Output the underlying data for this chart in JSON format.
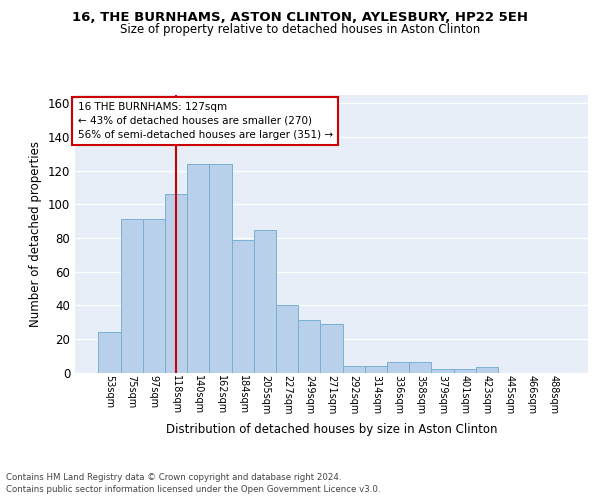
{
  "title1": "16, THE BURNHAMS, ASTON CLINTON, AYLESBURY, HP22 5EH",
  "title2": "Size of property relative to detached houses in Aston Clinton",
  "xlabel": "Distribution of detached houses by size in Aston Clinton",
  "ylabel": "Number of detached properties",
  "categories": [
    "53sqm",
    "75sqm",
    "97sqm",
    "118sqm",
    "140sqm",
    "162sqm",
    "184sqm",
    "205sqm",
    "227sqm",
    "249sqm",
    "271sqm",
    "292sqm",
    "314sqm",
    "336sqm",
    "358sqm",
    "379sqm",
    "401sqm",
    "423sqm",
    "445sqm",
    "466sqm",
    "488sqm"
  ],
  "values": [
    24,
    91,
    91,
    106,
    124,
    124,
    79,
    85,
    40,
    31,
    29,
    4,
    4,
    6,
    6,
    2,
    2,
    3,
    0,
    0,
    0
  ],
  "bar_color": "#b8d0ea",
  "bar_edge_color": "#7aafd4",
  "vline_color": "#cc0000",
  "annotation_text": "16 THE BURNHAMS: 127sqm\n← 43% of detached houses are smaller (270)\n56% of semi-detached houses are larger (351) →",
  "annotation_box_color": "#ffffff",
  "annotation_box_edge": "#cc0000",
  "ylim": [
    0,
    165
  ],
  "yticks": [
    0,
    20,
    40,
    60,
    80,
    100,
    120,
    140,
    160
  ],
  "footnote1": "Contains HM Land Registry data © Crown copyright and database right 2024.",
  "footnote2": "Contains public sector information licensed under the Open Government Licence v3.0.",
  "background_color": "#e8eef8",
  "fig_background": "#ffffff"
}
